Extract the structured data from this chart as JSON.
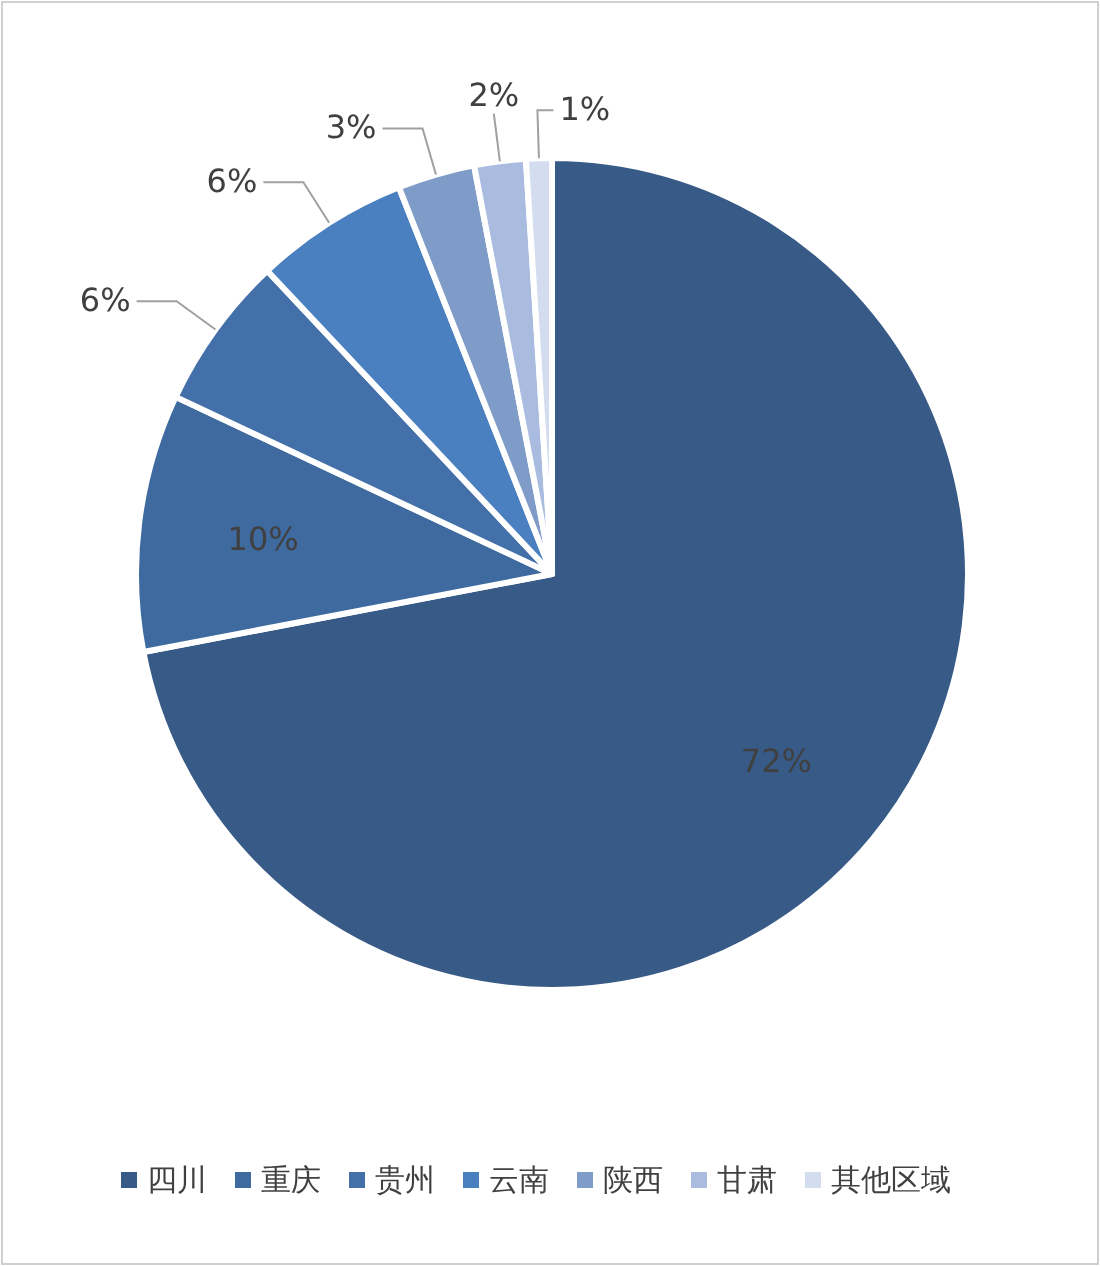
{
  "chart_data": {
    "type": "pie",
    "categories": [
      "四川",
      "重庆",
      "贵州",
      "云南",
      "陕西",
      "甘肃",
      "其他区域"
    ],
    "values": [
      72,
      10,
      6,
      6,
      3,
      2,
      1
    ],
    "colors": [
      "#375a87",
      "#3f6aa0",
      "#4470aa",
      "#4a7fc0",
      "#7f9cc8",
      "#a9bcdf",
      "#d3ddef"
    ],
    "value_labels": [
      "72%",
      "10%",
      "6%",
      "6%",
      "3%",
      "2%",
      "1%"
    ],
    "legend": "bottom"
  }
}
